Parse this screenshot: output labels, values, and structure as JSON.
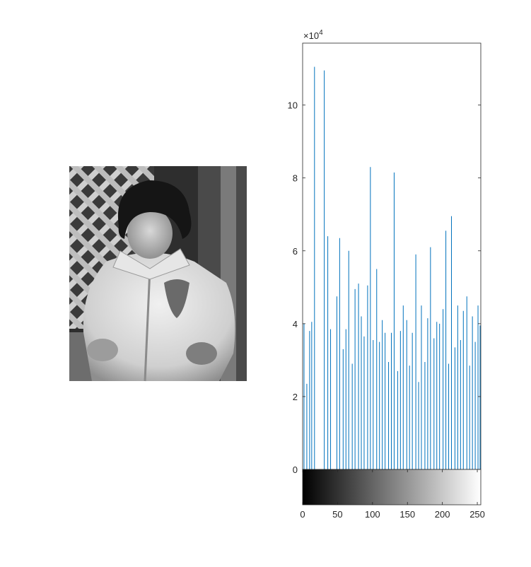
{
  "image_panel": {
    "description_icon": "photo-grayscale-child-icon"
  },
  "chart_data": {
    "type": "bar",
    "title": "",
    "xlabel": "",
    "ylabel": "",
    "y_exponent_label": "×10",
    "y_exponent_power": "4",
    "y_multiplier": 10000,
    "xlim": [
      0,
      255
    ],
    "ylim": [
      0,
      11.7
    ],
    "grid": false,
    "series_color": "#0072BD",
    "x_ticks": [
      0,
      50,
      100,
      150,
      200,
      250
    ],
    "y_ticks": [
      0,
      2,
      4,
      6,
      8,
      10
    ],
    "colorbar": "grayscale",
    "x": [
      2,
      6,
      10,
      13,
      17,
      22,
      27,
      31,
      36,
      40,
      44,
      49,
      53,
      58,
      62,
      66,
      71,
      75,
      80,
      84,
      88,
      93,
      97,
      101,
      106,
      110,
      114,
      118,
      123,
      127,
      131,
      136,
      140,
      144,
      149,
      153,
      157,
      162,
      166,
      170,
      175,
      179,
      183,
      188,
      192,
      196,
      201,
      205,
      209,
      213,
      218,
      222,
      226,
      230,
      235,
      239,
      243,
      247,
      251,
      254
    ],
    "values": [
      4.0,
      2.35,
      3.8,
      4.05,
      11.05,
      0,
      0,
      10.95,
      6.4,
      3.85,
      0,
      4.75,
      6.35,
      3.3,
      3.85,
      6.0,
      2.9,
      4.95,
      5.1,
      4.2,
      3.65,
      5.05,
      8.3,
      3.55,
      5.5,
      3.5,
      4.1,
      3.75,
      2.95,
      3.75,
      8.15,
      2.7,
      3.8,
      4.5,
      4.1,
      2.85,
      3.75,
      5.9,
      2.4,
      4.5,
      2.95,
      4.15,
      6.1,
      3.6,
      4.05,
      4.0,
      4.4,
      6.55,
      2.9,
      6.95,
      3.35,
      4.5,
      3.55,
      4.35,
      4.75,
      2.85,
      4.2,
      3.5,
      4.5,
      3.95
    ]
  }
}
